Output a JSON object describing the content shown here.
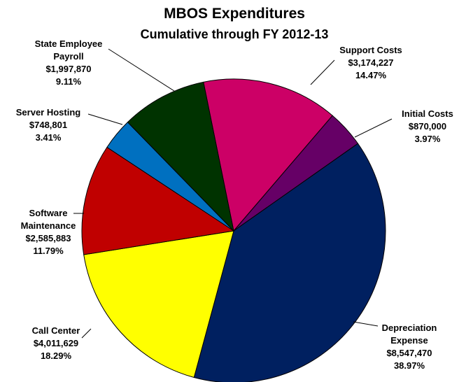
{
  "chart_data": {
    "type": "pie",
    "title": "MBOS Expenditures",
    "subtitle": "Cumulative through FY 2012-13",
    "slices": [
      {
        "label": "Support Costs",
        "value": 3174227,
        "value_text": "$3,174,227",
        "percent": 14.47,
        "percent_text": "14.47%",
        "color": "#CC0066"
      },
      {
        "label": "Initial Costs",
        "value": 870000,
        "value_text": "$870,000",
        "percent": 3.97,
        "percent_text": "3.97%",
        "color": "#660066"
      },
      {
        "label": "Depreciation Expense",
        "value": 8547470,
        "value_text": "$8,547,470",
        "percent": 38.97,
        "percent_text": "38.97%",
        "color": "#002060"
      },
      {
        "label": "Call Center",
        "value": 4011629,
        "value_text": "$4,011,629",
        "percent": 18.29,
        "percent_text": "18.29%",
        "color": "#FFFF00"
      },
      {
        "label": "Software Maintenance",
        "value": 2585883,
        "value_text": "$2,585,883",
        "percent": 11.79,
        "percent_text": "11.79%",
        "color": "#C00000"
      },
      {
        "label": "Server Hosting",
        "value": 748801,
        "value_text": "$748,801",
        "percent": 3.41,
        "percent_text": "3.41%",
        "color": "#0070C0"
      },
      {
        "label": "State Employee Payroll",
        "value": 1997870,
        "value_text": "$1,997,870",
        "percent": 9.11,
        "percent_text": "9.11%",
        "color": "#003300"
      }
    ]
  }
}
